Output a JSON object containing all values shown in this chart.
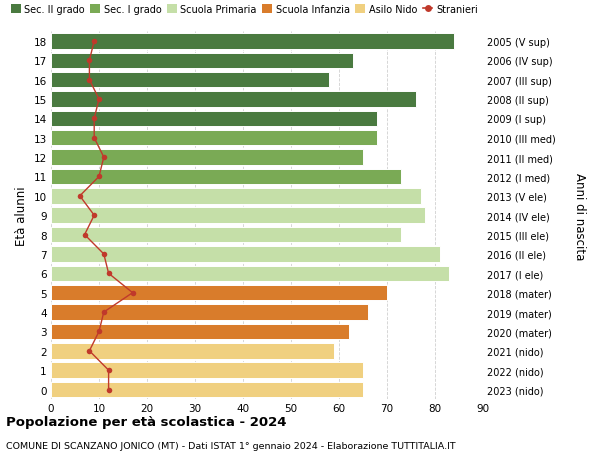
{
  "ages": [
    18,
    17,
    16,
    15,
    14,
    13,
    12,
    11,
    10,
    9,
    8,
    7,
    6,
    5,
    4,
    3,
    2,
    1,
    0
  ],
  "right_labels": [
    "2005 (V sup)",
    "2006 (IV sup)",
    "2007 (III sup)",
    "2008 (II sup)",
    "2009 (I sup)",
    "2010 (III med)",
    "2011 (II med)",
    "2012 (I med)",
    "2013 (V ele)",
    "2014 (IV ele)",
    "2015 (III ele)",
    "2016 (II ele)",
    "2017 (I ele)",
    "2018 (mater)",
    "2019 (mater)",
    "2020 (mater)",
    "2021 (nido)",
    "2022 (nido)",
    "2023 (nido)"
  ],
  "bar_values": [
    84,
    63,
    58,
    76,
    68,
    68,
    65,
    73,
    77,
    78,
    73,
    81,
    83,
    70,
    66,
    62,
    59,
    65,
    65
  ],
  "bar_colors": [
    "#4a7a40",
    "#4a7a40",
    "#4a7a40",
    "#4a7a40",
    "#4a7a40",
    "#7aaa55",
    "#7aaa55",
    "#7aaa55",
    "#c5dfa8",
    "#c5dfa8",
    "#c5dfa8",
    "#c5dfa8",
    "#c5dfa8",
    "#d97c2b",
    "#d97c2b",
    "#d97c2b",
    "#f0d080",
    "#f0d080",
    "#f0d080"
  ],
  "stranieri_values": [
    9,
    8,
    8,
    10,
    9,
    9,
    11,
    10,
    6,
    9,
    7,
    11,
    12,
    17,
    11,
    10,
    8,
    12,
    12
  ],
  "ylabel": "Età alunni",
  "ylabel_right": "Anni di nascita",
  "title": "Popolazione per età scolastica - 2024",
  "subtitle": "COMUNE DI SCANZANO JONICO (MT) - Dati ISTAT 1° gennaio 2024 - Elaborazione TUTTITALIA.IT",
  "xlim": [
    0,
    90
  ],
  "xticks": [
    0,
    10,
    20,
    30,
    40,
    50,
    60,
    70,
    80,
    90
  ],
  "legend_labels": [
    "Sec. II grado",
    "Sec. I grado",
    "Scuola Primaria",
    "Scuola Infanzia",
    "Asilo Nido",
    "Stranieri"
  ],
  "legend_colors": [
    "#4a7a40",
    "#7aaa55",
    "#c5dfa8",
    "#d97c2b",
    "#f0d080",
    "#c0392b"
  ],
  "stranieri_color": "#c0392b",
  "bg_color": "#ffffff",
  "grid_color": "#d0d0d0"
}
